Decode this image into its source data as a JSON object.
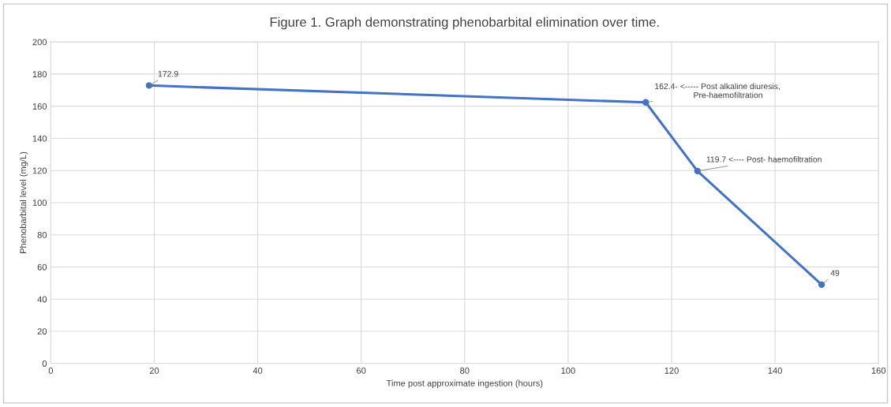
{
  "chart_data": {
    "type": "line",
    "title": "Figure 1. Graph demonstrating phenobarbital elimination over time.",
    "xlabel": "Time post approximate ingestion (hours)",
    "ylabel": "Phenobarbital level (mg/L)",
    "x": [
      19,
      115,
      125,
      149
    ],
    "series": [
      {
        "color": "#4472c4",
        "values": [
          172.9,
          162.4,
          119.7,
          49
        ]
      }
    ],
    "xlim": [
      0,
      160
    ],
    "xticks": [
      0,
      20,
      40,
      60,
      80,
      100,
      120,
      140,
      160
    ],
    "ylim": [
      0,
      200
    ],
    "yticks": [
      0,
      20,
      40,
      60,
      80,
      100,
      120,
      140,
      160,
      180,
      200
    ],
    "grid": true,
    "marker": "circle",
    "line_style": "solid",
    "annotations": [
      {
        "text": "172.9",
        "x": 19,
        "y": 172.9
      },
      {
        "text": "162.4- <----- Post alkaline diuresis,\n                 Pre-haemofiltration",
        "x": 115,
        "y": 162.4
      },
      {
        "text": "119.7 <---- Post- haemofiltration",
        "x": 125,
        "y": 119.7
      },
      {
        "text": "49",
        "x": 149,
        "y": 49
      }
    ]
  }
}
